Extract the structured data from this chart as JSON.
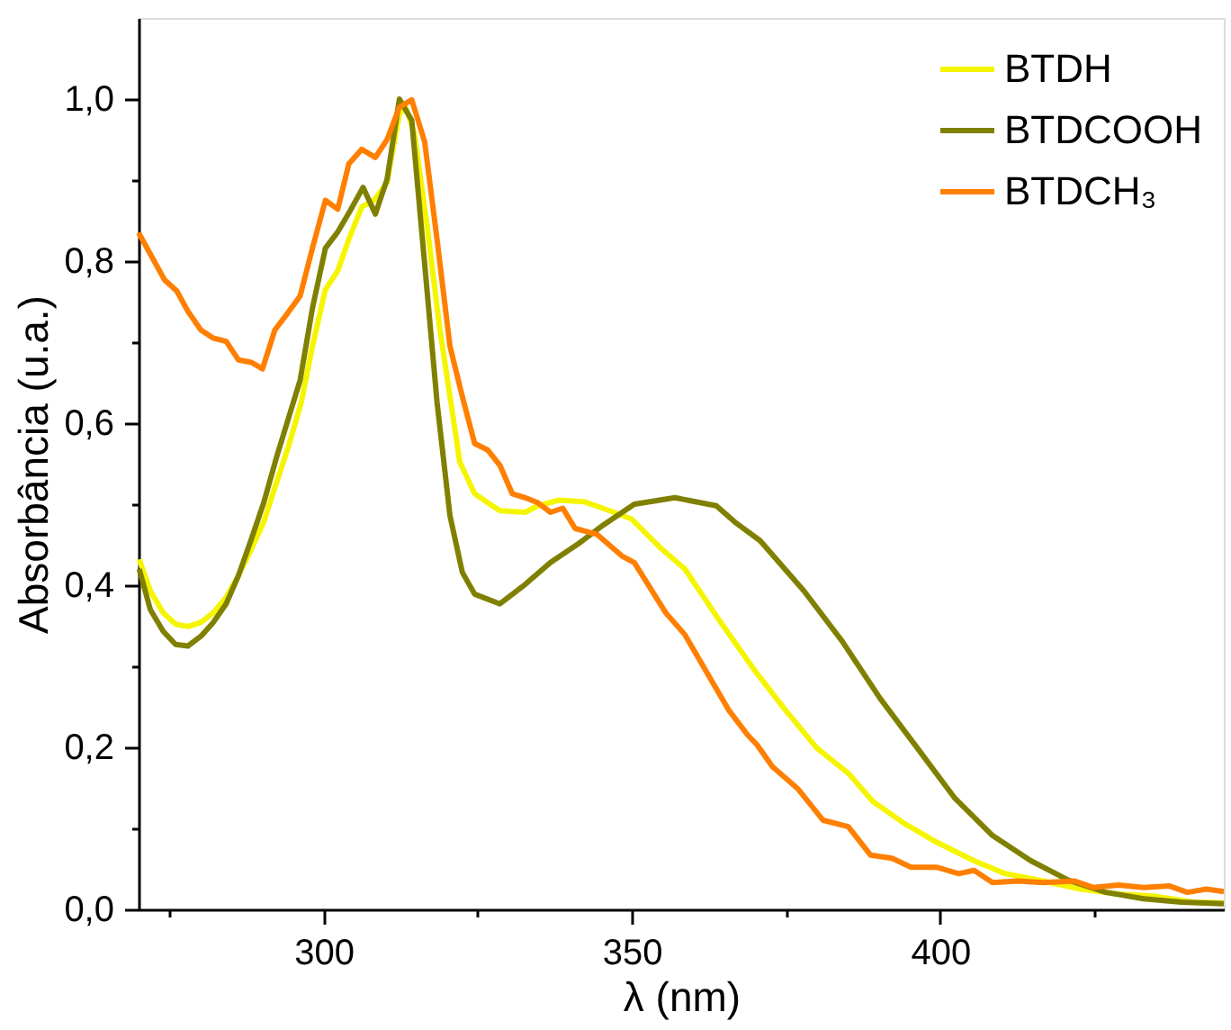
{
  "chart_data": {
    "type": "line",
    "xlabel": "λ (nm)",
    "ylabel": "Absorbância (u.a.)",
    "xlim": [
      270,
      446
    ],
    "ylim": [
      0,
      1.1
    ],
    "xticks": [
      {
        "value": 275,
        "label": null
      },
      300,
      {
        "value": 325,
        "label": null
      },
      350,
      {
        "value": 375,
        "label": null
      },
      400,
      {
        "value": 425,
        "label": null
      }
    ],
    "yticks": [
      {
        "value": 0,
        "label": "0,0"
      },
      {
        "value": 0.1,
        "label": null
      },
      {
        "value": 0.2,
        "label": "0,2"
      },
      {
        "value": 0.3,
        "label": null
      },
      {
        "value": 0.4,
        "label": "0,4"
      },
      {
        "value": 0.5,
        "label": null
      },
      {
        "value": 0.6,
        "label": "0,6"
      },
      {
        "value": 0.7,
        "label": null
      },
      {
        "value": 0.8,
        "label": "0,8"
      },
      {
        "value": 0.9,
        "label": null
      },
      {
        "value": 1.0,
        "label": "1,0"
      }
    ],
    "grid": false,
    "legend": "top right",
    "marker": "none",
    "line_style": "solid",
    "series": [
      {
        "name": "BTDH",
        "color": "#f5f500",
        "x": [
          270.1,
          271.9,
          274,
          276,
          278,
          280.1,
          282.1,
          284.2,
          286.2,
          288.2,
          290.3,
          292.3,
          294.3,
          296.4,
          298.2,
          300.3,
          302.3,
          304.1,
          306.2,
          308.2,
          310.3,
          312.3,
          313.3,
          314.7,
          316.8,
          318.8,
          320.5,
          322.1,
          324.5,
          326.6,
          328.6,
          332.7,
          334.7,
          338.2,
          342.3,
          345.3,
          349.9,
          354.5,
          358.6,
          363.7,
          369.8,
          374.9,
          380,
          385.1,
          389.1,
          394.2,
          399.4,
          405.5,
          410.6,
          416.7,
          422.8,
          428.9,
          435,
          441.1,
          446
        ],
        "values": [
          0.432,
          0.393,
          0.366,
          0.352,
          0.349,
          0.354,
          0.366,
          0.385,
          0.412,
          0.443,
          0.478,
          0.525,
          0.571,
          0.626,
          0.695,
          0.765,
          0.788,
          0.827,
          0.867,
          0.875,
          0.897,
          0.982,
          0.99,
          0.959,
          0.843,
          0.719,
          0.633,
          0.552,
          0.513,
          0.502,
          0.492,
          0.49,
          0.498,
          0.505,
          0.503,
          0.495,
          0.482,
          0.447,
          0.42,
          0.362,
          0.296,
          0.246,
          0.199,
          0.168,
          0.133,
          0.106,
          0.083,
          0.06,
          0.044,
          0.035,
          0.025,
          0.019,
          0.016,
          0.009,
          0.008
        ]
      },
      {
        "name": "BTDCOOH",
        "color": "#808000",
        "x": [
          270.1,
          271.9,
          274,
          276,
          278,
          280.1,
          282.1,
          284.2,
          286.2,
          288.2,
          290.3,
          292.3,
          294.3,
          296.2,
          298.2,
          300.3,
          302.3,
          304.3,
          306.4,
          308.4,
          310.3,
          312.3,
          314.3,
          316.4,
          318.4,
          320.5,
          322.5,
          324.5,
          328.6,
          332.7,
          336.8,
          341.3,
          345.3,
          350.4,
          357,
          363.7,
          366.7,
          370.8,
          377.9,
          384.1,
          390.2,
          396.3,
          402.4,
          408.5,
          414.7,
          420.8,
          426.9,
          433,
          439.1,
          446
        ],
        "values": [
          0.42,
          0.37,
          0.343,
          0.327,
          0.325,
          0.337,
          0.354,
          0.377,
          0.412,
          0.455,
          0.502,
          0.556,
          0.606,
          0.653,
          0.742,
          0.816,
          0.836,
          0.862,
          0.891,
          0.858,
          0.901,
          1.0,
          0.974,
          0.796,
          0.626,
          0.486,
          0.416,
          0.389,
          0.377,
          0.401,
          0.428,
          0.451,
          0.474,
          0.5,
          0.508,
          0.498,
          0.478,
          0.455,
          0.393,
          0.331,
          0.261,
          0.199,
          0.137,
          0.091,
          0.06,
          0.036,
          0.021,
          0.013,
          0.009,
          0.007
        ]
      },
      {
        "name": "BTDCH₃",
        "color": "#ff7f00",
        "x": [
          270,
          274.2,
          276.2,
          278,
          280.1,
          282.1,
          284.2,
          286.2,
          288.3,
          290.1,
          292.1,
          294.2,
          296.2,
          298.2,
          300.3,
          302.3,
          304.1,
          306.2,
          308.4,
          310.3,
          312.3,
          314.3,
          316.4,
          318.4,
          320.5,
          322.5,
          324.5,
          326.6,
          328.6,
          330.6,
          332.7,
          334.7,
          336.8,
          338.8,
          340.8,
          344.3,
          348.4,
          350.4,
          355.5,
          358.6,
          365.7,
          368.8,
          370.3,
          372.8,
          376.9,
          381,
          385.1,
          388.7,
          392.2,
          395.3,
          399.4,
          403,
          405.5,
          408.5,
          412.6,
          416.7,
          421.8,
          424.8,
          428.9,
          433,
          437.1,
          440.1,
          443.2,
          446
        ],
        "values": [
          0.835,
          0.777,
          0.763,
          0.738,
          0.715,
          0.705,
          0.701,
          0.678,
          0.675,
          0.667,
          0.715,
          0.736,
          0.757,
          0.816,
          0.875,
          0.864,
          0.92,
          0.938,
          0.928,
          0.95,
          0.99,
          0.999,
          0.947,
          0.827,
          0.695,
          0.633,
          0.575,
          0.567,
          0.548,
          0.513,
          0.508,
          0.502,
          0.49,
          0.495,
          0.47,
          0.463,
          0.436,
          0.428,
          0.366,
          0.339,
          0.246,
          0.215,
          0.203,
          0.176,
          0.149,
          0.11,
          0.102,
          0.067,
          0.063,
          0.052,
          0.052,
          0.044,
          0.048,
          0.033,
          0.035,
          0.033,
          0.035,
          0.027,
          0.03,
          0.027,
          0.029,
          0.021,
          0.025,
          0.022
        ]
      }
    ]
  }
}
